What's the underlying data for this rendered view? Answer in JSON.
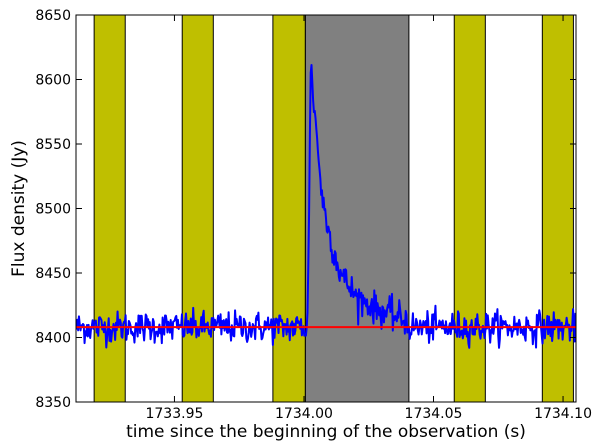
{
  "chart_data": {
    "type": "line",
    "title": "",
    "xlabel": "time since the beginning of the observation (s)",
    "ylabel": "Flux density (Jy)",
    "xlim": [
      1733.912,
      1734.105
    ],
    "ylim": [
      8350,
      8650
    ],
    "grid": false,
    "x_ticks": [
      1733.95,
      1734.0,
      1734.05,
      1734.1
    ],
    "x_tick_labels": [
      "1733.95",
      "1734.00",
      "1734.05",
      "1734.10"
    ],
    "y_ticks": [
      8350,
      8400,
      8450,
      8500,
      8550,
      8600,
      8650
    ],
    "y_tick_labels": [
      "8350",
      "8400",
      "8450",
      "8500",
      "8550",
      "8600",
      "8650"
    ],
    "off_pulse_windows": [
      [
        1733.919,
        1733.931
      ],
      [
        1733.953,
        1733.965
      ],
      [
        1733.988,
        1734.0005
      ],
      [
        1734.058,
        1734.07
      ],
      [
        1734.092,
        1734.104
      ]
    ],
    "on_pulse_window": [
      1734.0005,
      1734.0405
    ],
    "baseline_level": 8408,
    "pulse_model": {
      "noise_level": 8408,
      "noise_sigma": 6,
      "peak_time": 1734.0025,
      "peak_value": 8614,
      "secondary": [
        {
          "x": 1734.0035,
          "y": 8590
        },
        {
          "x": 1734.005,
          "y": 8555
        },
        {
          "x": 1734.007,
          "y": 8508
        },
        {
          "x": 1734.01,
          "y": 8478
        },
        {
          "x": 1734.014,
          "y": 8450
        },
        {
          "x": 1734.02,
          "y": 8432
        },
        {
          "x": 1734.028,
          "y": 8422
        },
        {
          "x": 1734.04,
          "y": 8413
        }
      ]
    },
    "colors": {
      "flux": "#0000ff",
      "baseline": "#ff0000",
      "off_pulse": "#bfbf00",
      "on_pulse": "#808080"
    }
  }
}
